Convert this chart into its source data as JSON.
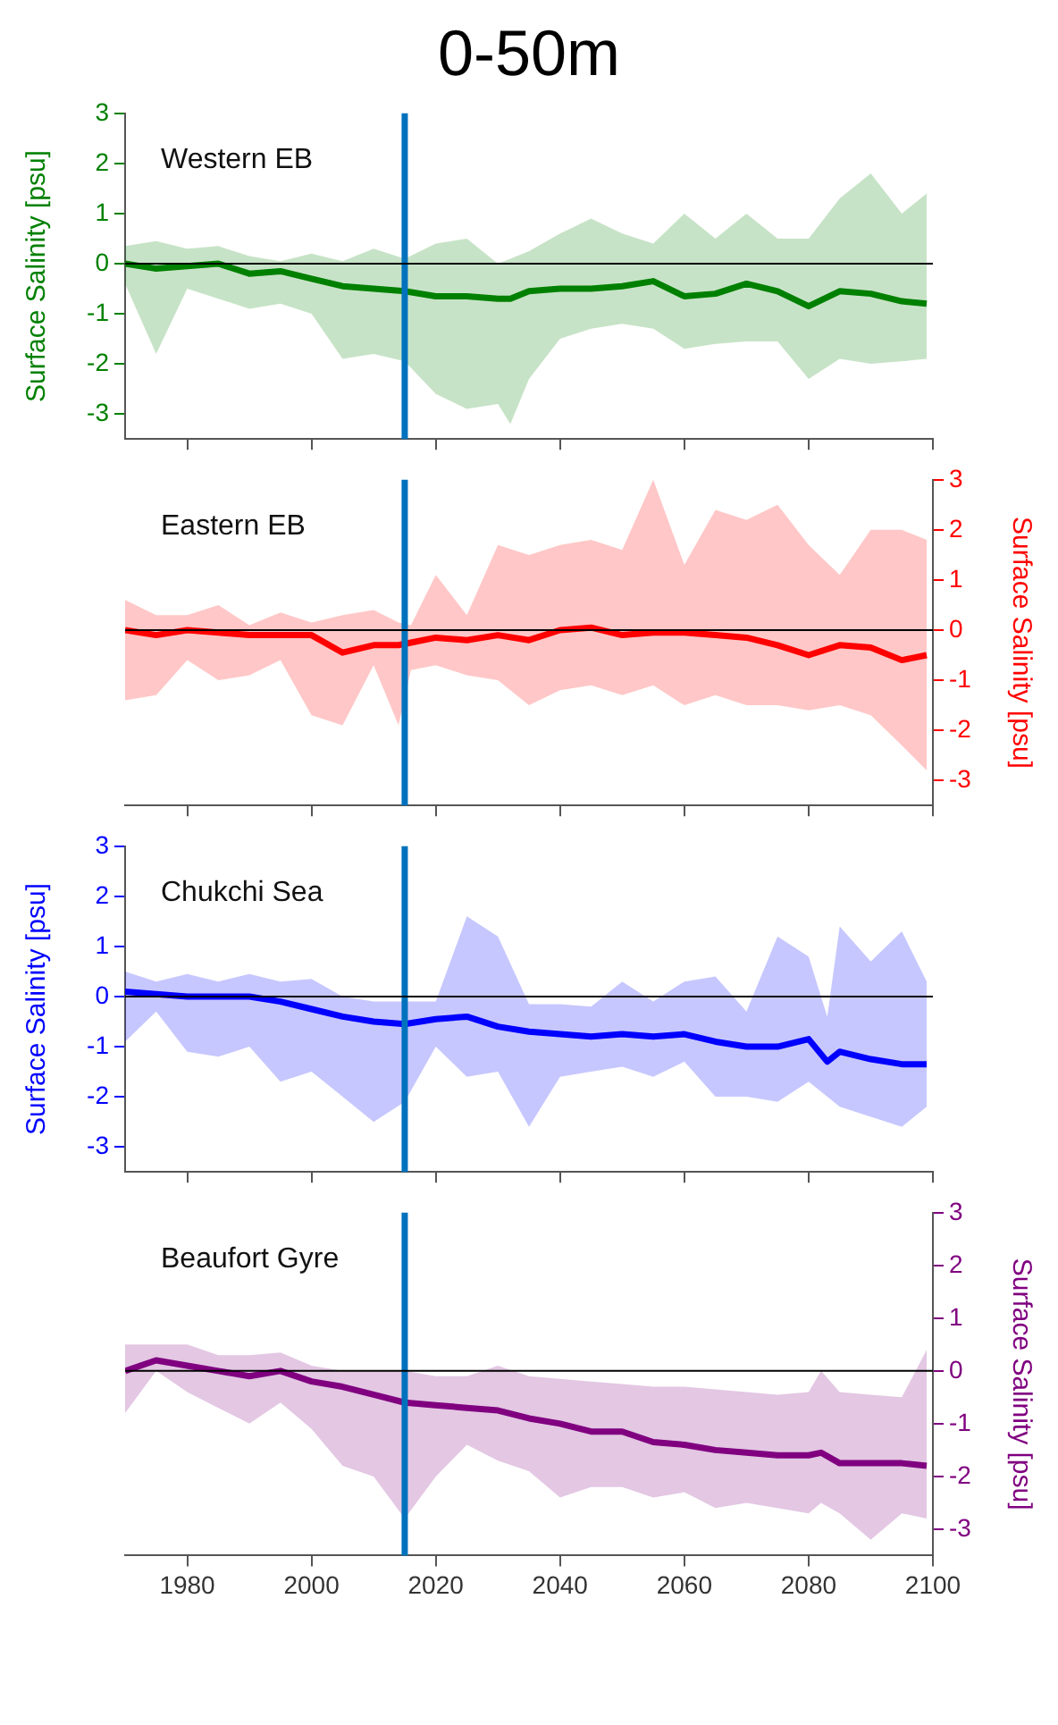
{
  "chart_data": [
    {
      "type": "line",
      "title": "0-50m",
      "annotations": [
        "Western EB"
      ],
      "ylabel": "Surface Salinity [psu]",
      "xlim": [
        1970,
        2100
      ],
      "xticks": [
        1980,
        2000,
        2020,
        2040,
        2060,
        2080,
        2100
      ],
      "ylim": [
        -3.5,
        3
      ],
      "yticks": [
        -3,
        -2,
        -1,
        0,
        1,
        2,
        3
      ],
      "tick_labels": "y",
      "grid": false,
      "legend": false,
      "marker": "none",
      "ref_lines": [
        {
          "axis": "x",
          "value": 2015,
          "color": "#0072bd"
        },
        {
          "axis": "y",
          "value": 0,
          "color": "#000000"
        }
      ],
      "x": [
        1970,
        1975,
        1980,
        1985,
        1990,
        1995,
        2000,
        2005,
        2010,
        2015,
        2020,
        2025,
        2030,
        2032,
        2035,
        2040,
        2045,
        2050,
        2055,
        2060,
        2065,
        2070,
        2075,
        2080,
        2085,
        2090,
        2095,
        2099
      ],
      "series": [
        {
          "color": "#008000",
          "values": [
            0.0,
            -0.1,
            -0.05,
            0.0,
            -0.2,
            -0.15,
            -0.3,
            -0.45,
            -0.5,
            -0.55,
            -0.65,
            -0.65,
            -0.7,
            -0.7,
            -0.55,
            -0.5,
            -0.5,
            -0.45,
            -0.35,
            -0.65,
            -0.6,
            -0.4,
            -0.55,
            -0.85,
            -0.55,
            -0.6,
            -0.75,
            -0.8
          ],
          "lower": [
            -0.4,
            -1.8,
            -0.5,
            -0.7,
            -0.9,
            -0.8,
            -1.0,
            -1.9,
            -1.8,
            -1.95,
            -2.6,
            -2.9,
            -2.8,
            -3.2,
            -2.3,
            -1.5,
            -1.3,
            -1.2,
            -1.3,
            -1.7,
            -1.6,
            -1.55,
            -1.55,
            -2.3,
            -1.9,
            -2.0,
            -1.95,
            -1.9
          ],
          "upper": [
            0.35,
            0.45,
            0.3,
            0.35,
            0.15,
            0.05,
            0.2,
            0.05,
            0.3,
            0.1,
            0.4,
            0.5,
            0.0,
            0.1,
            0.25,
            0.6,
            0.9,
            0.6,
            0.4,
            1.0,
            0.5,
            1.0,
            0.5,
            0.5,
            1.3,
            1.8,
            1.0,
            1.4
          ]
        }
      ]
    },
    {
      "type": "line",
      "annotations": [
        "Eastern EB"
      ],
      "y2label": "Surface Salinity [psu]",
      "xlim": [
        1970,
        2100
      ],
      "xticks": [
        1980,
        2000,
        2020,
        2040,
        2060,
        2080,
        2100
      ],
      "y2lim": [
        -3.5,
        3
      ],
      "y2ticks": [
        -3,
        -2,
        -1,
        0,
        1,
        2,
        3
      ],
      "tick_labels": "y",
      "grid": false,
      "legend": false,
      "marker": "none",
      "ref_lines": [
        {
          "axis": "x",
          "value": 2015,
          "color": "#0072bd"
        },
        {
          "axis": "y2",
          "value": 0,
          "color": "#000000"
        }
      ],
      "x": [
        1970,
        1975,
        1980,
        1985,
        1990,
        1995,
        2000,
        2005,
        2010,
        2014,
        2016,
        2020,
        2025,
        2030,
        2035,
        2040,
        2045,
        2050,
        2055,
        2060,
        2065,
        2070,
        2075,
        2080,
        2085,
        2090,
        2095,
        2099
      ],
      "series": [
        {
          "color": "#ff0000",
          "axis": "y2",
          "values": [
            0.0,
            -0.1,
            0.0,
            -0.05,
            -0.1,
            -0.1,
            -0.1,
            -0.45,
            -0.3,
            -0.3,
            -0.25,
            -0.15,
            -0.2,
            -0.1,
            -0.2,
            0.0,
            0.05,
            -0.1,
            -0.05,
            -0.05,
            -0.1,
            -0.15,
            -0.3,
            -0.5,
            -0.3,
            -0.35,
            -0.6,
            -0.5
          ],
          "lower": [
            -1.4,
            -1.3,
            -0.6,
            -1.0,
            -0.9,
            -0.6,
            -1.7,
            -1.9,
            -0.7,
            -1.9,
            -0.8,
            -0.7,
            -0.9,
            -1.0,
            -1.5,
            -1.2,
            -1.1,
            -1.3,
            -1.1,
            -1.5,
            -1.3,
            -1.5,
            -1.5,
            -1.6,
            -1.5,
            -1.7,
            -2.3,
            -2.8
          ],
          "upper": [
            0.6,
            0.3,
            0.3,
            0.5,
            0.1,
            0.35,
            0.15,
            0.3,
            0.4,
            0.15,
            0.1,
            1.1,
            0.3,
            1.7,
            1.5,
            1.7,
            1.8,
            1.6,
            3.0,
            1.3,
            2.4,
            2.2,
            2.5,
            1.7,
            1.1,
            2.0,
            2.0,
            1.8
          ]
        }
      ]
    },
    {
      "type": "line",
      "annotations": [
        "Chukchi Sea"
      ],
      "ylabel": "Surface Salinity [psu]",
      "xlim": [
        1970,
        2100
      ],
      "xticks": [
        1980,
        2000,
        2020,
        2040,
        2060,
        2080,
        2100
      ],
      "ylim": [
        -3.5,
        3
      ],
      "yticks": [
        -3,
        -2,
        -1,
        0,
        1,
        2,
        3
      ],
      "tick_labels": "y",
      "grid": false,
      "legend": false,
      "marker": "none",
      "ref_lines": [
        {
          "axis": "x",
          "value": 2015,
          "color": "#0072bd"
        },
        {
          "axis": "y",
          "value": 0,
          "color": "#000000"
        }
      ],
      "x": [
        1970,
        1975,
        1980,
        1985,
        1990,
        1995,
        2000,
        2005,
        2010,
        2015,
        2020,
        2025,
        2030,
        2035,
        2040,
        2045,
        2050,
        2055,
        2060,
        2065,
        2070,
        2075,
        2080,
        2083,
        2085,
        2090,
        2095,
        2099
      ],
      "series": [
        {
          "color": "#0000ff",
          "values": [
            0.1,
            0.05,
            0.0,
            0.0,
            0.0,
            -0.1,
            -0.25,
            -0.4,
            -0.5,
            -0.55,
            -0.45,
            -0.4,
            -0.6,
            -0.7,
            -0.75,
            -0.8,
            -0.75,
            -0.8,
            -0.75,
            -0.9,
            -1.0,
            -1.0,
            -0.85,
            -1.3,
            -1.1,
            -1.25,
            -1.35,
            -1.35
          ],
          "lower": [
            -0.9,
            -0.3,
            -1.1,
            -1.2,
            -1.0,
            -1.7,
            -1.5,
            -2.0,
            -2.5,
            -2.1,
            -1.0,
            -1.6,
            -1.5,
            -2.6,
            -1.6,
            -1.5,
            -1.4,
            -1.6,
            -1.3,
            -2.0,
            -2.0,
            -2.1,
            -1.7,
            -2.0,
            -2.2,
            -2.4,
            -2.6,
            -2.2
          ],
          "upper": [
            0.5,
            0.3,
            0.45,
            0.3,
            0.45,
            0.3,
            0.35,
            0.0,
            -0.1,
            -0.1,
            -0.1,
            1.6,
            1.2,
            -0.15,
            -0.15,
            -0.2,
            0.3,
            -0.1,
            0.3,
            0.4,
            -0.3,
            1.2,
            0.8,
            -0.4,
            1.4,
            0.7,
            1.3,
            0.3
          ]
        }
      ]
    },
    {
      "type": "line",
      "annotations": [
        "Beaufort Gyre"
      ],
      "y2label": "Surface Salinity [psu]",
      "xlim": [
        1970,
        2100
      ],
      "xticks": [
        1980,
        2000,
        2020,
        2040,
        2060,
        2080,
        2100
      ],
      "y2lim": [
        -3.5,
        3
      ],
      "y2ticks": [
        -3,
        -2,
        -1,
        0,
        1,
        2,
        3
      ],
      "grid": false,
      "legend": false,
      "marker": "none",
      "ref_lines": [
        {
          "axis": "x",
          "value": 2015,
          "color": "#0072bd"
        },
        {
          "axis": "y2",
          "value": 0,
          "color": "#000000"
        }
      ],
      "x": [
        1970,
        1975,
        1980,
        1985,
        1990,
        1995,
        2000,
        2005,
        2010,
        2015,
        2020,
        2025,
        2030,
        2035,
        2040,
        2045,
        2050,
        2055,
        2060,
        2065,
        2070,
        2075,
        2080,
        2082,
        2085,
        2090,
        2095,
        2099
      ],
      "series": [
        {
          "color": "#800080",
          "axis": "y2",
          "values": [
            0.0,
            0.2,
            0.1,
            0.0,
            -0.1,
            0.0,
            -0.2,
            -0.3,
            -0.45,
            -0.6,
            -0.65,
            -0.7,
            -0.75,
            -0.9,
            -1.0,
            -1.15,
            -1.15,
            -1.35,
            -1.4,
            -1.5,
            -1.55,
            -1.6,
            -1.6,
            -1.55,
            -1.75,
            -1.75,
            -1.75,
            -1.8
          ],
          "lower": [
            -0.8,
            0.0,
            -0.4,
            -0.7,
            -1.0,
            -0.6,
            -1.1,
            -1.8,
            -2.0,
            -2.8,
            -2.0,
            -1.4,
            -1.7,
            -1.9,
            -2.4,
            -2.2,
            -2.2,
            -2.4,
            -2.3,
            -2.6,
            -2.5,
            -2.6,
            -2.7,
            -2.5,
            -2.7,
            -3.2,
            -2.7,
            -2.8
          ],
          "upper": [
            0.5,
            0.5,
            0.5,
            0.3,
            0.3,
            0.35,
            0.1,
            0.0,
            0.0,
            0.0,
            -0.1,
            -0.1,
            0.1,
            -0.1,
            -0.15,
            -0.2,
            -0.25,
            -0.3,
            -0.3,
            -0.35,
            -0.4,
            -0.45,
            -0.4,
            0.0,
            -0.4,
            -0.45,
            -0.5,
            0.4
          ]
        }
      ]
    }
  ]
}
